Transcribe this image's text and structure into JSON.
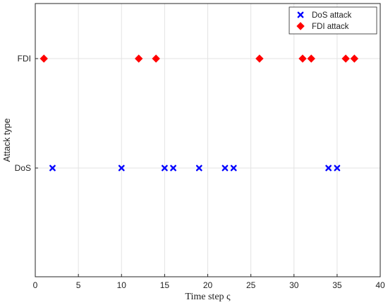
{
  "chart_data": {
    "type": "scatter",
    "xlabel": "Time step ς",
    "ylabel": "Attack type",
    "xlim": [
      0,
      40
    ],
    "x_ticks": [
      0,
      5,
      10,
      15,
      20,
      25,
      30,
      35,
      40
    ],
    "categories": [
      "DoS",
      "FDI"
    ],
    "grid": true,
    "legend_position": "top-right",
    "series": [
      {
        "name": "DoS attack",
        "category": "DoS",
        "marker": "x",
        "color": "#0000ff",
        "x": [
          2,
          10,
          15,
          16,
          19,
          22,
          23,
          34,
          35
        ]
      },
      {
        "name": "FDI attack",
        "category": "FDI",
        "marker": "diamond",
        "color": "#ff0000",
        "x": [
          1,
          12,
          14,
          26,
          31,
          32,
          36,
          37
        ]
      }
    ]
  }
}
